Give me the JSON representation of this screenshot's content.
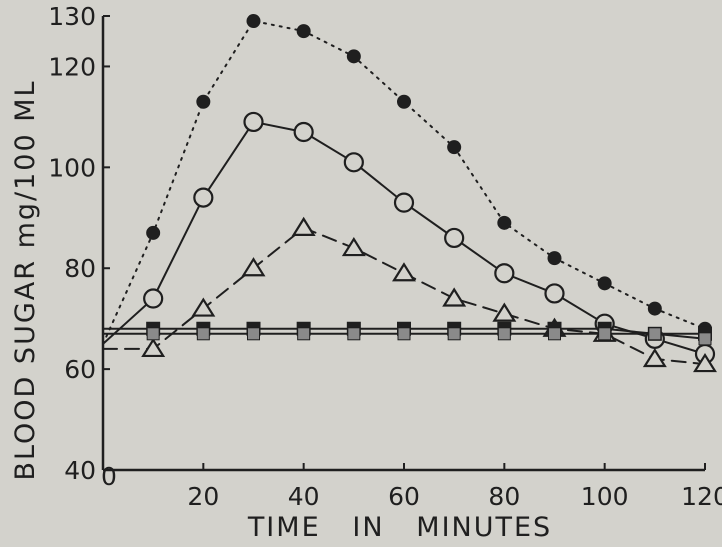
{
  "chart_data": {
    "type": "line",
    "xlabel": "TIME   IN   MINUTES",
    "ylabel": "BLOOD SUGAR mg/100 ML",
    "xlim": [
      0,
      120
    ],
    "ylim": [
      40,
      130
    ],
    "x_ticks": [
      0,
      20,
      40,
      60,
      80,
      100,
      120
    ],
    "x_tick_labels": [
      "0",
      "20",
      "40",
      "60",
      "80",
      "100",
      "120"
    ],
    "y_ticks": [
      40,
      60,
      80,
      100,
      120,
      130
    ],
    "y_tick_labels": [
      "40",
      "60",
      "80",
      "100",
      "120",
      "130"
    ],
    "grid": false,
    "colors": {
      "ink": "#1f1f1f",
      "paper": "#d3d2cc",
      "gray_marker": "#8a8a8a"
    },
    "series": [
      {
        "marker": "filled-circle",
        "line_style": "dotted",
        "points": [
          [
            0,
            65
          ],
          [
            10,
            87
          ],
          [
            20,
            113
          ],
          [
            30,
            129
          ],
          [
            40,
            127
          ],
          [
            50,
            122
          ],
          [
            60,
            113
          ],
          [
            70,
            104
          ],
          [
            80,
            89
          ],
          [
            90,
            82
          ],
          [
            100,
            77
          ],
          [
            110,
            72
          ],
          [
            120,
            68
          ]
        ]
      },
      {
        "marker": "open-circle",
        "line_style": "solid",
        "points": [
          [
            0,
            65
          ],
          [
            10,
            74
          ],
          [
            20,
            94
          ],
          [
            30,
            109
          ],
          [
            40,
            107
          ],
          [
            50,
            101
          ],
          [
            60,
            93
          ],
          [
            70,
            86
          ],
          [
            80,
            79
          ],
          [
            90,
            75
          ],
          [
            100,
            69
          ],
          [
            110,
            66
          ],
          [
            120,
            63
          ]
        ]
      },
      {
        "marker": "open-triangle",
        "line_style": "dashed",
        "points": [
          [
            0,
            64
          ],
          [
            10,
            64
          ],
          [
            20,
            72
          ],
          [
            30,
            80
          ],
          [
            40,
            88
          ],
          [
            50,
            84
          ],
          [
            60,
            79
          ],
          [
            70,
            74
          ],
          [
            80,
            71
          ],
          [
            90,
            68
          ],
          [
            100,
            67
          ],
          [
            110,
            62
          ],
          [
            120,
            61
          ]
        ]
      },
      {
        "marker": "filled-square",
        "line_style": "solid",
        "points": [
          [
            0,
            68
          ],
          [
            10,
            68
          ],
          [
            20,
            68
          ],
          [
            30,
            68
          ],
          [
            40,
            68
          ],
          [
            50,
            68
          ],
          [
            60,
            68
          ],
          [
            70,
            68
          ],
          [
            80,
            68
          ],
          [
            90,
            68
          ],
          [
            100,
            68
          ],
          [
            110,
            67
          ],
          [
            120,
            67
          ]
        ]
      },
      {
        "marker": "gray-square",
        "line_style": "solid",
        "points": [
          [
            0,
            67
          ],
          [
            10,
            67
          ],
          [
            20,
            67
          ],
          [
            30,
            67
          ],
          [
            40,
            67
          ],
          [
            50,
            67
          ],
          [
            60,
            67
          ],
          [
            70,
            67
          ],
          [
            80,
            67
          ],
          [
            90,
            67
          ],
          [
            100,
            67
          ],
          [
            110,
            67
          ],
          [
            120,
            66
          ]
        ]
      }
    ]
  }
}
